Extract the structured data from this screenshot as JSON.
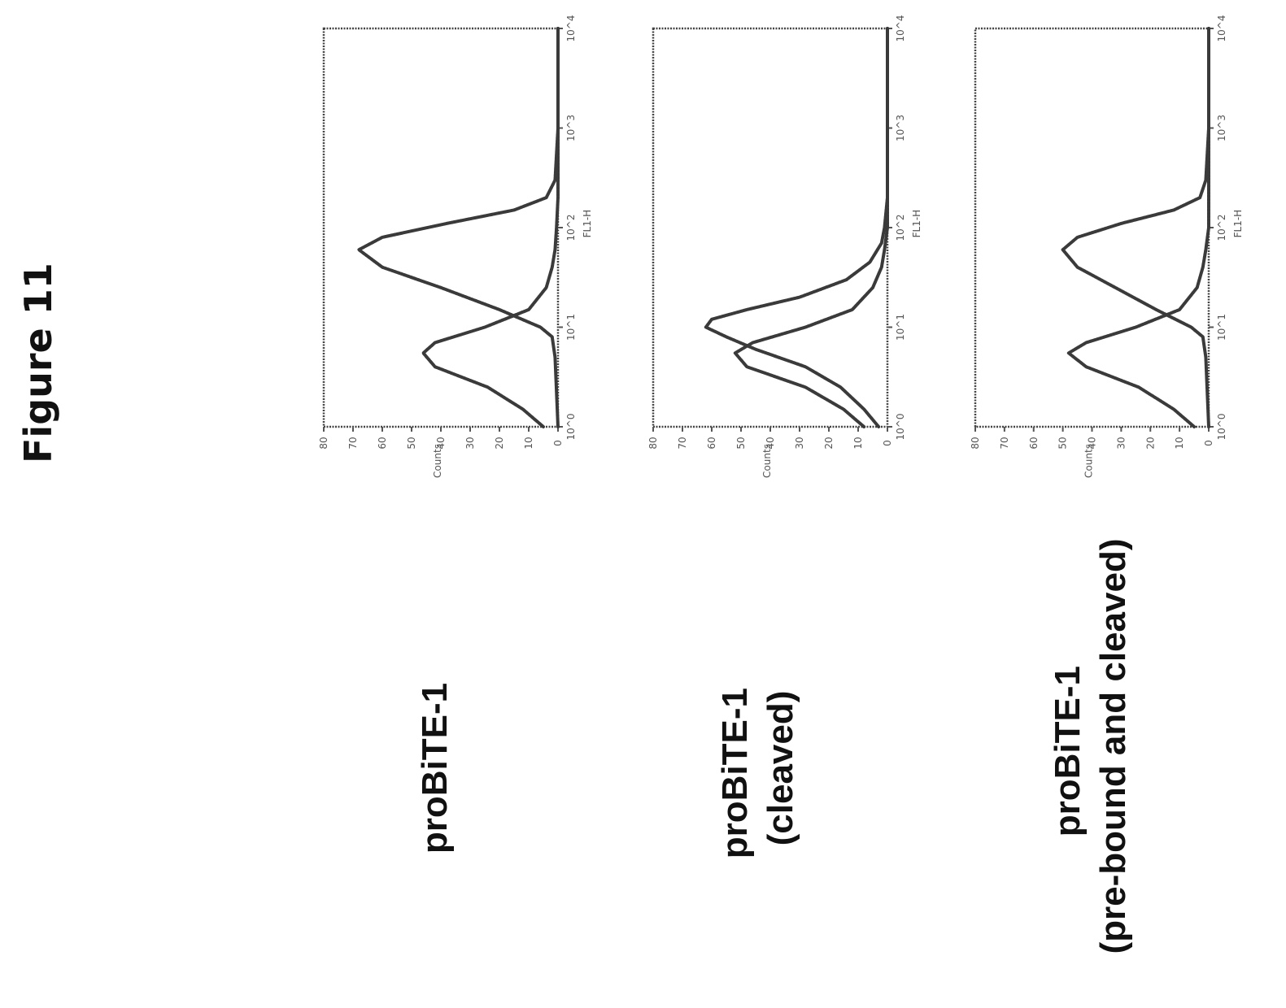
{
  "figure_title": "Figure 11",
  "panels": [
    {
      "label_lines": [
        "proBiTE-1"
      ]
    },
    {
      "label_lines": [
        "proBiTE-1",
        "(cleaved)"
      ]
    },
    {
      "label_lines": [
        "proBiTE-1",
        "(pre-bound and cleaved)"
      ]
    }
  ],
  "chart_data": [
    {
      "type": "line",
      "title": "proBiTE-1",
      "xlabel": "FL1-H",
      "ylabel": "Counts",
      "xscale": "log",
      "xlim": [
        1,
        10000
      ],
      "ylim": [
        0,
        80
      ],
      "xticks": [
        "10^0",
        "10^1",
        "10^2",
        "10^3",
        "10^4"
      ],
      "yticks": [
        "0",
        "10",
        "20",
        "30",
        "40",
        "50",
        "60",
        "70",
        "80"
      ],
      "series": [
        {
          "x": [
            1,
            1.5,
            2.5,
            4,
            5.5,
            7,
            10,
            15,
            25,
            40,
            60,
            100,
            200,
            400,
            1000,
            10000
          ],
          "y": [
            5,
            12,
            24,
            42,
            46,
            42,
            25,
            10,
            4,
            2,
            1,
            0.5,
            0,
            0,
            0,
            0
          ]
        },
        {
          "x": [
            1,
            5,
            8,
            10,
            15,
            25,
            40,
            60,
            80,
            110,
            150,
            200,
            300,
            1000,
            10000
          ],
          "y": [
            0,
            1,
            2,
            6,
            20,
            40,
            60,
            68,
            60,
            38,
            15,
            4,
            1,
            0,
            0
          ]
        }
      ]
    },
    {
      "type": "line",
      "title": "proBiTE-1 (cleaved)",
      "xlabel": "FL1-H",
      "ylabel": "Counts",
      "xscale": "log",
      "xlim": [
        1,
        10000
      ],
      "ylim": [
        0,
        80
      ],
      "xticks": [
        "10^0",
        "10^1",
        "10^2",
        "10^3",
        "10^4"
      ],
      "yticks": [
        "0",
        "10",
        "20",
        "30",
        "40",
        "50",
        "60",
        "70",
        "80"
      ],
      "series": [
        {
          "x": [
            1,
            1.5,
            2.5,
            4,
            5.5,
            7,
            10,
            15,
            25,
            40,
            60,
            100,
            200,
            1000,
            10000
          ],
          "y": [
            8,
            15,
            28,
            48,
            52,
            46,
            28,
            12,
            5,
            2,
            1,
            0,
            0,
            0,
            0
          ]
        },
        {
          "x": [
            1,
            1.5,
            2.5,
            4,
            6,
            8,
            10,
            12,
            15,
            20,
            30,
            45,
            70,
            100,
            200,
            1000,
            10000
          ],
          "y": [
            3,
            8,
            16,
            28,
            45,
            55,
            62,
            60,
            48,
            30,
            14,
            6,
            2,
            1,
            0,
            0,
            0
          ]
        }
      ]
    },
    {
      "type": "line",
      "title": "proBiTE-1 (pre-bound and cleaved)",
      "xlabel": "FL1-H",
      "ylabel": "Counts",
      "xscale": "log",
      "xlim": [
        1,
        10000
      ],
      "ylim": [
        0,
        80
      ],
      "xticks": [
        "10^0",
        "10^1",
        "10^2",
        "10^3",
        "10^4"
      ],
      "yticks": [
        "0",
        "10",
        "20",
        "30",
        "40",
        "50",
        "60",
        "70",
        "80"
      ],
      "series": [
        {
          "x": [
            1,
            1.5,
            2.5,
            4,
            5.5,
            7,
            10,
            15,
            25,
            40,
            60,
            100,
            200,
            1000,
            10000
          ],
          "y": [
            5,
            12,
            24,
            42,
            48,
            42,
            25,
            10,
            4,
            2,
            1,
            0,
            0,
            0,
            0
          ]
        },
        {
          "x": [
            1,
            5,
            8,
            10,
            15,
            25,
            40,
            60,
            80,
            110,
            150,
            200,
            300,
            1000,
            10000
          ],
          "y": [
            0,
            1,
            2,
            6,
            18,
            32,
            45,
            50,
            45,
            30,
            12,
            3,
            1,
            0,
            0
          ]
        }
      ]
    }
  ]
}
